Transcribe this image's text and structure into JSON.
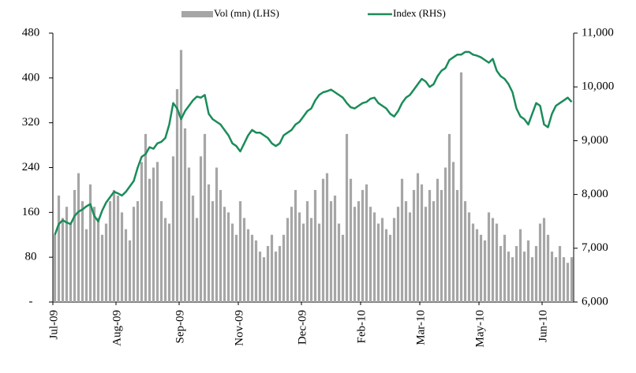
{
  "chart_data": {
    "type": "bar",
    "categories": [
      "Jul-09",
      null,
      null,
      null,
      null,
      null,
      null,
      null,
      null,
      null,
      null,
      null,
      null,
      null,
      null,
      null,
      "Aug-09",
      null,
      null,
      null,
      null,
      null,
      null,
      null,
      null,
      null,
      null,
      null,
      null,
      null,
      null,
      null,
      "Sep-09",
      null,
      null,
      null,
      null,
      null,
      null,
      null,
      null,
      null,
      null,
      null,
      null,
      null,
      null,
      "Nov-09",
      null,
      null,
      null,
      null,
      null,
      null,
      null,
      null,
      null,
      null,
      null,
      null,
      null,
      null,
      null,
      "Dec-09",
      null,
      null,
      null,
      null,
      null,
      null,
      null,
      null,
      null,
      null,
      null,
      null,
      null,
      null,
      "Feb-10",
      null,
      null,
      null,
      null,
      null,
      null,
      null,
      null,
      null,
      null,
      null,
      null,
      null,
      null,
      "Mar-10",
      null,
      null,
      null,
      null,
      null,
      null,
      null,
      null,
      null,
      null,
      null,
      null,
      null,
      null,
      "May-10",
      null,
      null,
      null,
      null,
      null,
      null,
      null,
      null,
      null,
      null,
      null,
      null,
      null,
      null,
      null,
      "Jun-10",
      null,
      null,
      null,
      null,
      null,
      null,
      null
    ],
    "series": [
      {
        "name": "Vol (mn) (LHS)",
        "type": "bar",
        "color": "#a6a6a6",
        "values": [
          120,
          190,
          150,
          170,
          140,
          200,
          230,
          180,
          130,
          210,
          170,
          150,
          120,
          140,
          180,
          200,
          190,
          160,
          130,
          110,
          170,
          180,
          250,
          300,
          220,
          240,
          250,
          180,
          150,
          140,
          260,
          380,
          450,
          310,
          240,
          190,
          150,
          260,
          300,
          210,
          180,
          240,
          200,
          170,
          160,
          140,
          120,
          180,
          150,
          130,
          120,
          110,
          90,
          80,
          100,
          120,
          90,
          100,
          120,
          150,
          170,
          200,
          160,
          140,
          180,
          150,
          200,
          140,
          220,
          230,
          180,
          190,
          140,
          120,
          300,
          220,
          170,
          180,
          200,
          210,
          170,
          160,
          140,
          150,
          130,
          120,
          150,
          170,
          220,
          180,
          160,
          200,
          230,
          210,
          170,
          200,
          180,
          220,
          200,
          240,
          300,
          250,
          200,
          410,
          180,
          160,
          140,
          130,
          120,
          110,
          160,
          150,
          140,
          100,
          120,
          90,
          80,
          100,
          130,
          90,
          110,
          80,
          100,
          140,
          150,
          120,
          90,
          80,
          100,
          80,
          70,
          80
        ]
      },
      {
        "name": "Index (RHS)",
        "type": "line",
        "axis": "y2",
        "color": "#1a8c5a",
        "values": [
          7250,
          7450,
          7520,
          7480,
          7450,
          7600,
          7680,
          7720,
          7780,
          7820,
          7600,
          7500,
          7700,
          7850,
          7950,
          8050,
          8020,
          7980,
          8050,
          8150,
          8250,
          8500,
          8700,
          8750,
          8880,
          8850,
          8950,
          8980,
          9050,
          9300,
          9700,
          9600,
          9400,
          9550,
          9650,
          9750,
          9820,
          9800,
          9850,
          9500,
          9400,
          9350,
          9300,
          9200,
          9100,
          8950,
          8900,
          8800,
          8950,
          9100,
          9200,
          9150,
          9150,
          9100,
          9050,
          8950,
          8900,
          8950,
          9100,
          9150,
          9200,
          9300,
          9350,
          9450,
          9550,
          9600,
          9750,
          9850,
          9900,
          9920,
          9950,
          9900,
          9850,
          9800,
          9700,
          9620,
          9600,
          9650,
          9700,
          9720,
          9780,
          9800,
          9700,
          9650,
          9600,
          9500,
          9450,
          9550,
          9700,
          9800,
          9850,
          9950,
          10050,
          10150,
          10100,
          10000,
          10050,
          10200,
          10300,
          10350,
          10500,
          10550,
          10600,
          10600,
          10650,
          10650,
          10600,
          10580,
          10550,
          10500,
          10450,
          10520,
          10300,
          10200,
          10150,
          10050,
          9900,
          9600,
          9450,
          9400,
          9300,
          9500,
          9700,
          9650,
          9300,
          9250,
          9500,
          9650,
          9700,
          9750,
          9800,
          9720
        ]
      }
    ],
    "ylim": [
      0,
      480
    ],
    "yticks": [
      {
        "value": 0,
        "label": "-"
      },
      80,
      160,
      240,
      320,
      400,
      480
    ],
    "y2lim": [
      6000,
      11000
    ],
    "y2ticks": [
      {
        "value": 6000,
        "label": "6,000"
      },
      {
        "value": 7000,
        "label": "7,000"
      },
      {
        "value": 8000,
        "label": "8,000"
      },
      {
        "value": 9000,
        "label": "9,000"
      },
      {
        "value": 10000,
        "label": "10,000"
      },
      {
        "value": 11000,
        "label": "11,000"
      }
    ],
    "grid": false,
    "legend": "top"
  }
}
